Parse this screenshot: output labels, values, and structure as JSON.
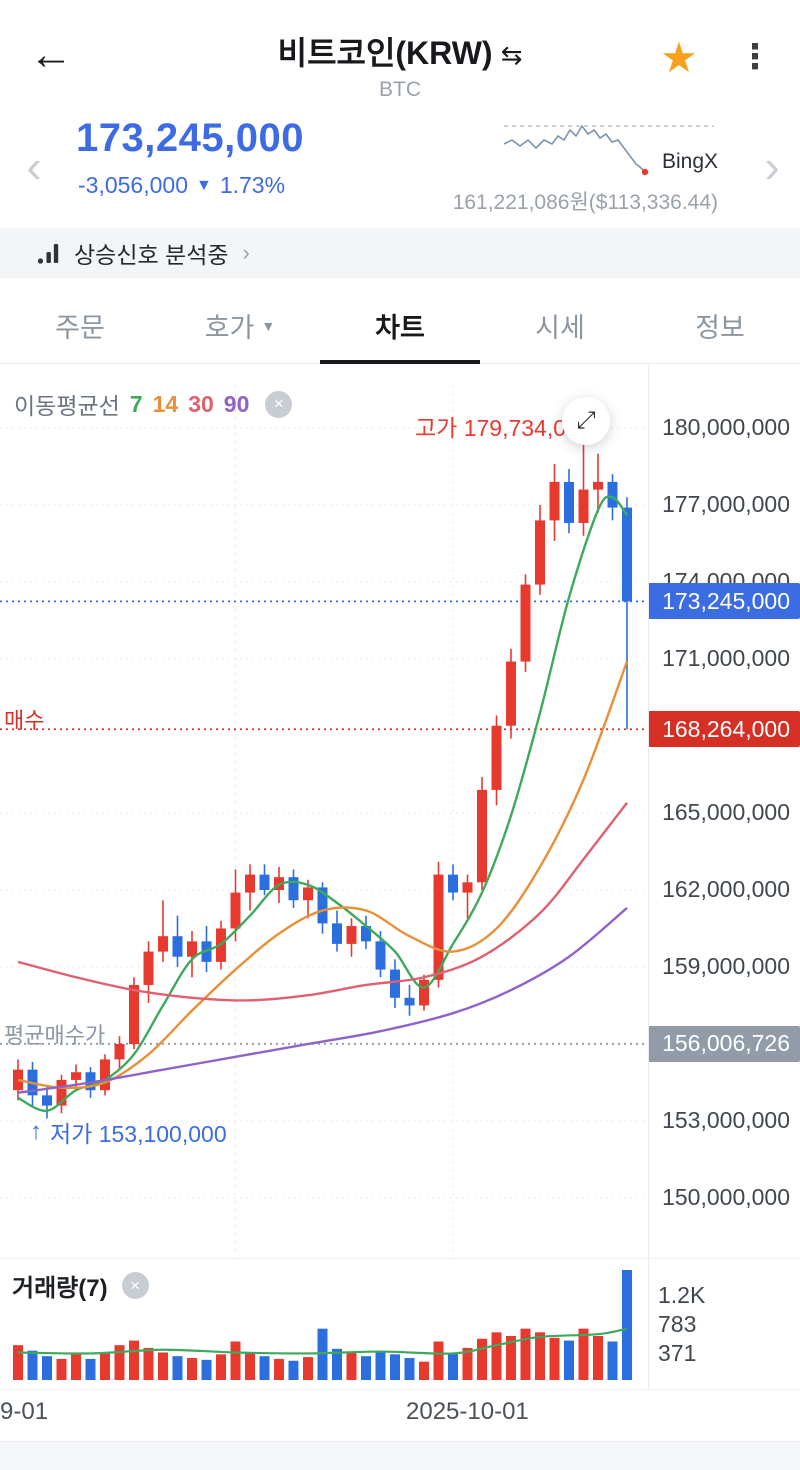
{
  "header": {
    "back_icon": "←",
    "title": "비트코인(KRW)",
    "swap_icon": "⇆",
    "subtitle": "BTC",
    "star_icon": "★",
    "menu_icon": "⋮"
  },
  "price": {
    "current": "173,245,000",
    "change": "-3,056,000",
    "change_dir_icon": "▼",
    "change_pct": "1.73%",
    "prev_icon": "‹",
    "next_icon": "›",
    "exchange": "BingX",
    "exchange_price": "161,221,086원($113,336.44)"
  },
  "signal_banner": {
    "text": "상승신호 분석중",
    "chevron": "›"
  },
  "tabs": [
    {
      "label": "주문"
    },
    {
      "label": "호가",
      "dropdown": "▼"
    },
    {
      "label": "차트",
      "active": true
    },
    {
      "label": "시세"
    },
    {
      "label": "정보"
    }
  ],
  "chart_data": {
    "type": "candlestick",
    "unit": "KRW, values in millions",
    "legend": {
      "title": "이동평균선",
      "periods": [
        {
          "label": "7",
          "color": "#3ca95c"
        },
        {
          "label": "14",
          "color": "#e89038"
        },
        {
          "label": "30",
          "color": "#e06070"
        },
        {
          "label": "90",
          "color": "#8e62c9"
        }
      ],
      "close_icon": "×"
    },
    "annotations": {
      "high": {
        "label": "고가 179,734,000",
        "color": "#e8392f",
        "expand_icon": "⤢"
      },
      "low": {
        "label": "저가 153,100,000",
        "arrow": "↑",
        "color": "#3b6ce2"
      }
    },
    "y_axis": {
      "labels": [
        {
          "text": "180,000,000",
          "value": 180
        },
        {
          "text": "177,000,000",
          "value": 177
        },
        {
          "text": "174,000,000",
          "value": 174
        },
        {
          "text": "171,000,000",
          "value": 171
        },
        {
          "text": "165,000,000",
          "value": 165
        },
        {
          "text": "162,000,000",
          "value": 162
        },
        {
          "text": "159,000,000",
          "value": 159
        },
        {
          "text": "153,000,000",
          "value": 153
        },
        {
          "text": "150,000,000",
          "value": 150
        }
      ]
    },
    "price_lines": [
      {
        "name": "current",
        "label": "",
        "text": "173,245,000",
        "value": 173.245,
        "color": "#3b6ce2",
        "badge_bg": "#3b6ce2"
      },
      {
        "name": "buy",
        "label": "매수",
        "text": "168,264,000",
        "value": 168.264,
        "color": "#d63026",
        "badge_bg": "#d63026"
      },
      {
        "name": "avg",
        "label": "평균매수가",
        "text": "156,006,726",
        "value": 156.006726,
        "color": "#8d97a5",
        "badge_bg": "#929ca9"
      }
    ],
    "colors": {
      "up": "#e8392f",
      "down": "#2b6fdf",
      "grid": "#e7e9ec",
      "vgrid": "#e4e7eb"
    },
    "candles": [
      [
        154.2,
        155.4,
        153.8,
        155.0
      ],
      [
        155.0,
        155.3,
        153.6,
        154.0
      ],
      [
        154.0,
        154.4,
        153.1,
        153.6
      ],
      [
        153.6,
        154.8,
        153.3,
        154.6
      ],
      [
        154.6,
        155.2,
        154.2,
        154.9
      ],
      [
        154.9,
        155.1,
        153.9,
        154.2
      ],
      [
        154.2,
        155.6,
        154.0,
        155.4
      ],
      [
        155.4,
        156.3,
        155.0,
        156.0
      ],
      [
        156.0,
        158.6,
        155.8,
        158.3
      ],
      [
        158.3,
        160.0,
        157.6,
        159.6
      ],
      [
        159.6,
        161.6,
        159.2,
        160.2
      ],
      [
        160.2,
        161.0,
        159.0,
        159.4
      ],
      [
        159.4,
        160.4,
        158.6,
        160.0
      ],
      [
        160.0,
        160.6,
        158.8,
        159.2
      ],
      [
        159.2,
        160.8,
        158.9,
        160.5
      ],
      [
        160.5,
        162.8,
        160.0,
        161.9
      ],
      [
        161.9,
        163.0,
        161.2,
        162.6
      ],
      [
        162.6,
        163.0,
        161.8,
        162.0
      ],
      [
        162.0,
        162.9,
        161.5,
        162.5
      ],
      [
        162.5,
        162.8,
        161.3,
        161.6
      ],
      [
        161.6,
        162.4,
        160.9,
        162.1
      ],
      [
        162.1,
        162.3,
        160.3,
        160.7
      ],
      [
        160.7,
        161.2,
        159.6,
        159.9
      ],
      [
        159.9,
        160.9,
        159.4,
        160.6
      ],
      [
        160.6,
        161.0,
        159.7,
        160.0
      ],
      [
        160.0,
        160.4,
        158.6,
        158.9
      ],
      [
        158.9,
        159.3,
        157.4,
        157.8
      ],
      [
        157.8,
        158.3,
        157.1,
        157.5
      ],
      [
        157.5,
        158.7,
        157.3,
        158.5
      ],
      [
        158.5,
        163.1,
        158.2,
        162.6
      ],
      [
        162.6,
        163.0,
        161.6,
        161.9
      ],
      [
        161.9,
        162.6,
        160.9,
        162.3
      ],
      [
        162.3,
        166.4,
        162.0,
        165.9
      ],
      [
        165.9,
        168.8,
        165.3,
        168.4
      ],
      [
        168.4,
        171.4,
        167.9,
        170.9
      ],
      [
        170.9,
        174.3,
        170.5,
        173.9
      ],
      [
        173.9,
        177.0,
        173.5,
        176.4
      ],
      [
        176.4,
        178.6,
        175.6,
        177.9
      ],
      [
        177.9,
        178.4,
        175.9,
        176.3
      ],
      [
        176.3,
        179.734,
        175.8,
        177.6
      ],
      [
        177.6,
        179.0,
        176.7,
        177.9
      ],
      [
        177.9,
        178.2,
        176.4,
        176.9
      ],
      [
        176.9,
        177.3,
        168.264,
        173.245
      ]
    ],
    "ma_lines": [
      {
        "period": 7,
        "color": "#3ca95c",
        "points": [
          [
            0,
            153.9
          ],
          [
            2,
            153.4
          ],
          [
            4,
            154.2
          ],
          [
            6,
            154.6
          ],
          [
            8,
            155.6
          ],
          [
            10,
            157.5
          ],
          [
            12,
            159.3
          ],
          [
            14,
            159.9
          ],
          [
            16,
            161.0
          ],
          [
            18,
            162.2
          ],
          [
            20,
            162.2
          ],
          [
            22,
            161.5
          ],
          [
            24,
            160.6
          ],
          [
            26,
            159.6
          ],
          [
            28,
            158.2
          ],
          [
            30,
            159.9
          ],
          [
            32,
            161.9
          ],
          [
            34,
            164.9
          ],
          [
            36,
            168.9
          ],
          [
            38,
            173.4
          ],
          [
            40,
            176.8
          ],
          [
            41,
            177.3
          ],
          [
            42,
            176.6
          ]
        ]
      },
      {
        "period": 14,
        "color": "#e89038",
        "points": [
          [
            0,
            154.6
          ],
          [
            3,
            154.3
          ],
          [
            6,
            154.5
          ],
          [
            9,
            155.6
          ],
          [
            12,
            157.3
          ],
          [
            15,
            158.9
          ],
          [
            18,
            160.3
          ],
          [
            21,
            161.2
          ],
          [
            24,
            161.2
          ],
          [
            27,
            160.2
          ],
          [
            30,
            159.6
          ],
          [
            33,
            160.5
          ],
          [
            36,
            162.9
          ],
          [
            39,
            166.3
          ],
          [
            42,
            170.9
          ]
        ]
      },
      {
        "period": 30,
        "color": "#e06070",
        "points": [
          [
            0,
            159.2
          ],
          [
            4,
            158.6
          ],
          [
            8,
            158.1
          ],
          [
            12,
            157.8
          ],
          [
            16,
            157.7
          ],
          [
            20,
            157.9
          ],
          [
            24,
            158.3
          ],
          [
            28,
            158.6
          ],
          [
            32,
            159.4
          ],
          [
            36,
            161.1
          ],
          [
            39,
            163.2
          ],
          [
            42,
            165.4
          ]
        ]
      },
      {
        "period": 90,
        "color": "#8e62c9",
        "points": [
          [
            0,
            154.1
          ],
          [
            5,
            154.5
          ],
          [
            10,
            155.0
          ],
          [
            15,
            155.5
          ],
          [
            20,
            156.0
          ],
          [
            25,
            156.5
          ],
          [
            30,
            157.2
          ],
          [
            34,
            158.1
          ],
          [
            38,
            159.4
          ],
          [
            42,
            161.3
          ]
        ]
      }
    ],
    "vgrid_indices": [
      15,
      30
    ]
  },
  "volume": {
    "title": "거래량(7)",
    "close_icon": "×",
    "y_labels": [
      "1.2K",
      "783",
      "371"
    ],
    "max": 1200,
    "values": [
      380,
      320,
      260,
      230,
      280,
      230,
      300,
      380,
      430,
      350,
      300,
      260,
      240,
      220,
      280,
      420,
      300,
      260,
      230,
      210,
      250,
      560,
      340,
      300,
      260,
      300,
      280,
      240,
      200,
      420,
      300,
      350,
      450,
      520,
      480,
      560,
      520,
      460,
      430,
      560,
      480,
      420,
      1200
    ],
    "ma_color": "#3ca95c",
    "ma_points": [
      [
        0,
        300
      ],
      [
        5,
        290
      ],
      [
        10,
        330
      ],
      [
        15,
        300
      ],
      [
        20,
        290
      ],
      [
        25,
        310
      ],
      [
        30,
        290
      ],
      [
        33,
        380
      ],
      [
        36,
        470
      ],
      [
        40,
        500
      ],
      [
        42,
        560
      ]
    ]
  },
  "x_axis": {
    "labels": [
      {
        "text": "9-01"
      },
      {
        "text": "2025-10-01"
      }
    ]
  }
}
